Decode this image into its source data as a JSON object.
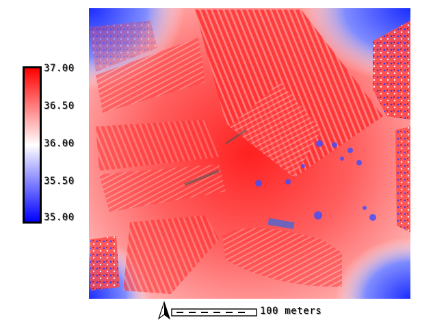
{
  "legend": {
    "ticks": [
      "37.00",
      "36.50",
      "36.00",
      "35.50",
      "35.00"
    ],
    "colors": {
      "high": "#ff0000",
      "mid": "#ffffff",
      "low": "#0000ff"
    }
  },
  "scale_bar": {
    "label": "100 meters"
  },
  "icons": {
    "north_arrow": "north-arrow-icon"
  }
}
